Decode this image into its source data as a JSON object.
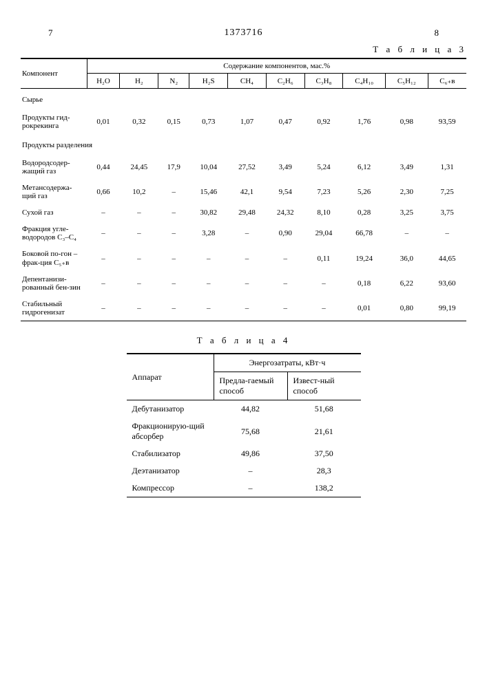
{
  "header": {
    "left_page": "7",
    "doc_number": "1373716",
    "right_page": "8"
  },
  "table3": {
    "caption": "Т а б л и ц а  3",
    "col_component": "Компонент",
    "col_group": "Содержание компонентов, мас.%",
    "cols": [
      "H₂O",
      "H₂",
      "N₂",
      "H₂S",
      "CH₄",
      "C₂H₆",
      "C₃H₈",
      "C₄H₁₀",
      "C₅H₁₂",
      "C₆₊в"
    ],
    "section1": "Сырье",
    "rows": [
      {
        "label": "Продукты гид-рокрекинга",
        "v": [
          "0,01",
          "0,32",
          "0,15",
          "0,73",
          "1,07",
          "0,47",
          "0,92",
          "1,76",
          "0,98",
          "93,59"
        ]
      }
    ],
    "section2": "Продукты разделения",
    "rows2": [
      {
        "label": "Водородсодер-жащий газ",
        "v": [
          "0,44",
          "24,45",
          "17,9",
          "10,04",
          "27,52",
          "3,49",
          "5,24",
          "6,12",
          "3,49",
          "1,31"
        ]
      },
      {
        "label": "Метансодержа-щий газ",
        "v": [
          "0,66",
          "10,2",
          "–",
          "15,46",
          "42,1",
          "9,54",
          "7,23",
          "5,26",
          "2,30",
          "7,25"
        ]
      },
      {
        "label": "Сухой газ",
        "v": [
          "–",
          "–",
          "–",
          "30,82",
          "29,48",
          "24,32",
          "8,10",
          "0,28",
          "3,25",
          "3,75"
        ]
      },
      {
        "label": "Фракция угле-водородов C₃–C₄",
        "v": [
          "–",
          "–",
          "–",
          "3,28",
          "–",
          "0,90",
          "29,04",
          "66,78",
          "–",
          "–"
        ]
      },
      {
        "label": "Боковой по-гон – фрак-ция C₅₊в",
        "v": [
          "–",
          "–",
          "–",
          "–",
          "–",
          "–",
          "0,11",
          "19,24",
          "36,0",
          "44,65"
        ]
      },
      {
        "label": "Депентанизи-рованный бен-зин",
        "v": [
          "–",
          "–",
          "–",
          "–",
          "–",
          "–",
          "–",
          "0,18",
          "6,22",
          "93,60"
        ]
      },
      {
        "label": "Стабильный гидрогенизат",
        "v": [
          "–",
          "–",
          "–",
          "–",
          "–",
          "–",
          "–",
          "0,01",
          "0,80",
          "99,19"
        ]
      }
    ]
  },
  "table4": {
    "caption": "Т а б л и ц а  4",
    "col_apparatus": "Аппарат",
    "col_group": "Энергозатраты, кВт·ч",
    "col_proposed": "Предла-гаемый способ",
    "col_known": "Извест-ный способ",
    "rows": [
      {
        "label": "Дебутанизатор",
        "a": "44,82",
        "b": "51,68"
      },
      {
        "label": "Фракционирую-щий абсорбер",
        "a": "75,68",
        "b": "21,61"
      },
      {
        "label": "Стабилизатор",
        "a": "49,86",
        "b": "37,50"
      },
      {
        "label": "Деэтанизатор",
        "a": "–",
        "b": "28,3"
      },
      {
        "label": "Компрессор",
        "a": "–",
        "b": "138,2"
      }
    ]
  }
}
